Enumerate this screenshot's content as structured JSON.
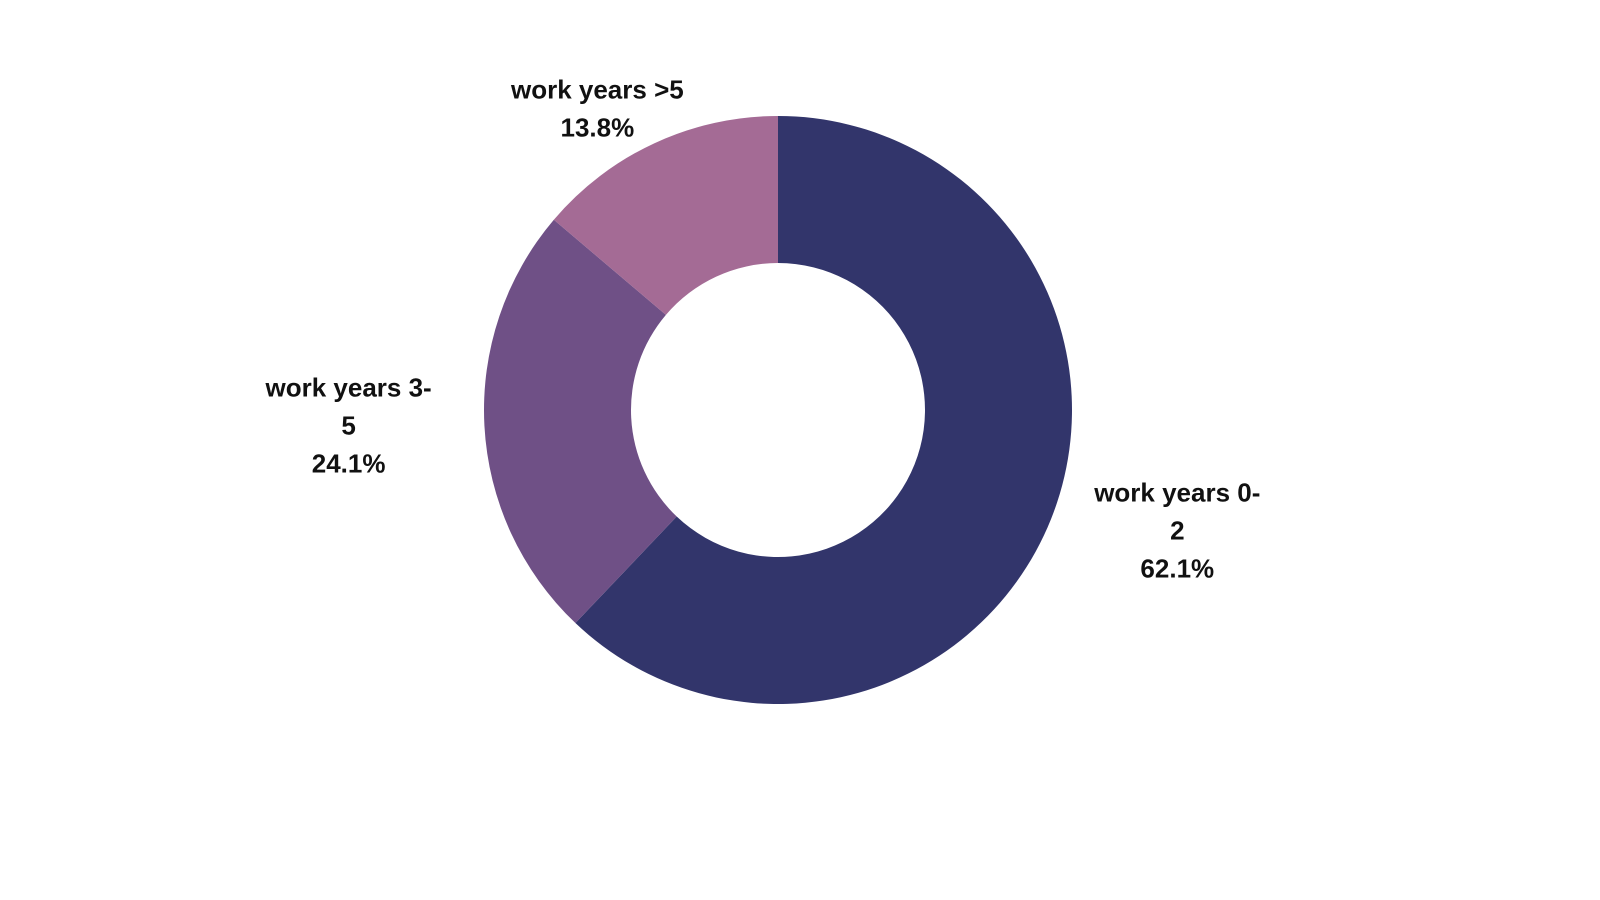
{
  "chart_data": {
    "type": "pie",
    "hole": 0.5,
    "categories": [
      "work years 0-2",
      "work years 3-5",
      "work years >5"
    ],
    "values": [
      62.1,
      24.1,
      13.8
    ],
    "value_labels": [
      "62.1%",
      "24.1%",
      "13.8%"
    ],
    "colors": [
      "#32356b",
      "#6f5086",
      "#a46b95"
    ]
  }
}
